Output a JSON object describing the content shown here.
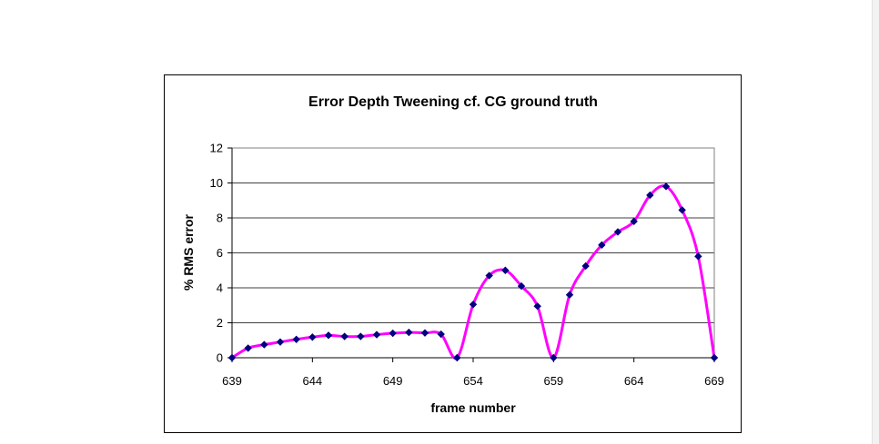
{
  "chart_data": {
    "type": "line",
    "title": "Error Depth Tweening cf. CG ground truth",
    "xlabel": "frame number",
    "ylabel": "% RMS error",
    "xlim": [
      639,
      669
    ],
    "ylim": [
      0,
      12
    ],
    "x_ticks": [
      639,
      644,
      649,
      654,
      659,
      664,
      669
    ],
    "y_ticks": [
      0,
      2,
      4,
      6,
      8,
      10,
      12
    ],
    "grid": "horizontal",
    "legend": "none",
    "series": [
      {
        "line_color": "#ff00ff",
        "marker_color": "#000080",
        "marker": "diamond",
        "x": [
          639,
          640,
          641,
          642,
          643,
          644,
          645,
          646,
          647,
          648,
          649,
          650,
          651,
          652,
          653,
          654,
          655,
          656,
          657,
          658,
          659,
          660,
          661,
          662,
          663,
          664,
          665,
          666,
          667,
          668,
          669
        ],
        "y": [
          0,
          0.55,
          0.75,
          0.9,
          1.05,
          1.18,
          1.28,
          1.22,
          1.22,
          1.32,
          1.4,
          1.45,
          1.42,
          1.35,
          0,
          3.05,
          4.7,
          5.0,
          4.1,
          2.95,
          0,
          3.6,
          5.25,
          6.45,
          7.2,
          7.8,
          9.3,
          9.8,
          8.45,
          5.8,
          0
        ]
      }
    ]
  }
}
